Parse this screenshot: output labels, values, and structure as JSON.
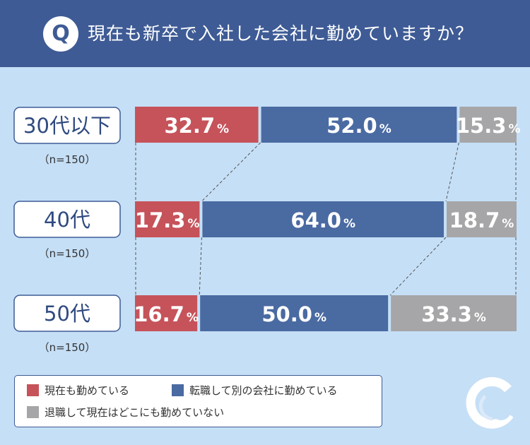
{
  "header": {
    "badge": "Q",
    "question": "現在も新卒で入社した会社に勤めていますか？"
  },
  "colors": {
    "header_bg": "#3e5b95",
    "background": "#c5dff6",
    "red": "#c6535a",
    "blue": "#4a6aa2",
    "gray": "#a6a6a8"
  },
  "chart_data": {
    "type": "bar",
    "orientation": "horizontal",
    "stacked": true,
    "percent_suffix": "%",
    "categories": [
      "30代以下",
      "40代",
      "50代"
    ],
    "sample_labels": [
      "（n=150）",
      "（n=150）",
      "（n=150）"
    ],
    "series": [
      {
        "name": "現在も勤めている",
        "color": "#c6535a",
        "values": [
          32.7,
          17.3,
          16.7
        ]
      },
      {
        "name": "転職して別の会社に勤めている",
        "color": "#4a6aa2",
        "values": [
          52.0,
          64.0,
          50.0
        ]
      },
      {
        "name": "退職して現在はどこにも勤めていない",
        "color": "#a6a6a8",
        "values": [
          15.3,
          18.7,
          33.3
        ]
      }
    ],
    "value_labels": [
      [
        "32.7",
        "52.0",
        "15.3"
      ],
      [
        "17.3",
        "64.0",
        "18.7"
      ],
      [
        "16.7",
        "50.0",
        "33.3"
      ]
    ],
    "xlim": [
      0,
      100
    ],
    "legend_position": "bottom-left"
  },
  "legend": {
    "items": [
      {
        "label": "現在も勤めている",
        "color": "#c6535a"
      },
      {
        "label": "転職して別の会社に勤めている",
        "color": "#4a6aa2"
      },
      {
        "label": "退職して現在はどこにも勤めていない",
        "color": "#a6a6a8"
      }
    ]
  }
}
